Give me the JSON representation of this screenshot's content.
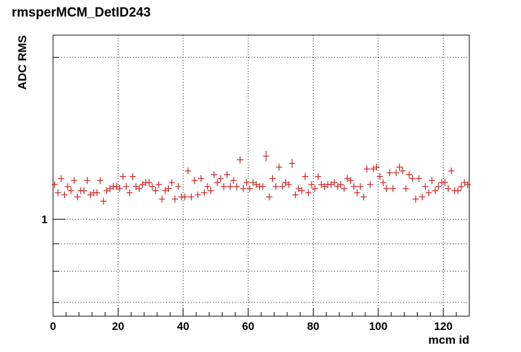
{
  "chart_data": {
    "type": "scatter",
    "title": "rmsperMCM_DetID243",
    "xlabel": "mcm id",
    "ylabel": "ADC RMS",
    "xlim": [
      0,
      128
    ],
    "ylim": [
      0.66,
      2.2
    ],
    "y_scale": "log",
    "grid": true,
    "x_ticks": [
      0,
      20,
      40,
      60,
      80,
      100,
      120
    ],
    "x_tick_labels": [
      "0",
      "20",
      "40",
      "60",
      "80",
      "100",
      "120"
    ],
    "y_tick_labels": [
      {
        "value": 1,
        "label": "1"
      }
    ],
    "marker_color": "#cc2222",
    "series": [
      {
        "x": [
          0,
          1,
          2,
          3,
          4,
          5,
          6,
          7,
          8,
          9,
          10,
          11,
          12,
          13,
          14,
          15,
          16,
          17,
          18,
          19,
          20,
          21,
          22,
          23,
          24,
          25,
          26,
          27,
          28,
          29,
          30,
          31,
          32,
          33,
          34,
          35,
          36,
          37,
          38,
          39,
          40,
          41,
          42,
          43,
          44,
          45,
          46,
          47,
          48,
          49,
          50,
          51,
          52,
          53,
          54,
          55,
          56,
          57,
          58,
          59,
          60,
          61,
          62,
          63,
          64,
          65,
          66,
          67,
          68,
          69,
          70,
          71,
          72,
          73,
          74,
          75,
          76,
          77,
          78,
          79,
          80,
          81,
          82,
          83,
          84,
          85,
          86,
          87,
          88,
          89,
          90,
          91,
          92,
          93,
          94,
          95,
          96,
          97,
          98,
          99,
          100,
          101,
          102,
          103,
          104,
          105,
          106,
          107,
          108,
          109,
          110,
          111,
          112,
          113,
          114,
          115,
          116,
          117,
          118,
          119,
          120,
          121,
          122,
          123,
          124,
          125,
          126,
          127
        ],
        "y": [
          1.16,
          1.12,
          1.19,
          1.11,
          1.15,
          1.13,
          1.18,
          1.1,
          1.13,
          1.13,
          1.18,
          1.11,
          1.12,
          1.12,
          1.18,
          1.08,
          1.13,
          1.14,
          1.15,
          1.15,
          1.14,
          1.2,
          1.15,
          1.12,
          1.2,
          1.15,
          1.14,
          1.16,
          1.17,
          1.17,
          1.15,
          1.13,
          1.16,
          1.09,
          1.13,
          1.14,
          1.17,
          1.09,
          1.15,
          1.1,
          1.1,
          1.23,
          1.1,
          1.18,
          1.11,
          1.19,
          1.12,
          1.15,
          1.13,
          1.21,
          1.17,
          1.19,
          1.15,
          1.21,
          1.15,
          1.18,
          1.15,
          1.29,
          1.14,
          1.17,
          1.14,
          1.17,
          1.16,
          1.15,
          1.15,
          1.31,
          1.1,
          1.19,
          1.15,
          1.25,
          1.15,
          1.17,
          1.16,
          1.27,
          1.11,
          1.14,
          1.13,
          1.2,
          1.12,
          1.16,
          1.14,
          1.2,
          1.16,
          1.15,
          1.16,
          1.16,
          1.17,
          1.15,
          1.16,
          1.14,
          1.19,
          1.18,
          1.15,
          1.12,
          1.15,
          1.1,
          1.24,
          1.16,
          1.24,
          1.25,
          1.2,
          1.17,
          1.14,
          1.22,
          1.14,
          1.22,
          1.25,
          1.23,
          1.14,
          1.21,
          1.19,
          1.09,
          1.19,
          1.1,
          1.15,
          1.12,
          1.18,
          1.13,
          1.15,
          1.17,
          1.17,
          1.14,
          1.23,
          1.13,
          1.13,
          1.15,
          1.17,
          1.16
        ],
        "y_err": [
          0.015,
          0.012,
          0.014,
          0.012,
          0.013,
          0.012,
          0.013,
          0.012,
          0.012,
          0.012,
          0.013,
          0.012,
          0.012,
          0.012,
          0.013,
          0.012,
          0.012,
          0.012,
          0.013,
          0.013,
          0.012,
          0.013,
          0.013,
          0.012,
          0.013,
          0.013,
          0.012,
          0.013,
          0.013,
          0.013,
          0.013,
          0.012,
          0.013,
          0.012,
          0.012,
          0.012,
          0.013,
          0.012,
          0.013,
          0.012,
          0.012,
          0.014,
          0.012,
          0.013,
          0.012,
          0.013,
          0.012,
          0.013,
          0.012,
          0.013,
          0.013,
          0.013,
          0.013,
          0.013,
          0.013,
          0.013,
          0.013,
          0.015,
          0.012,
          0.013,
          0.012,
          0.013,
          0.013,
          0.013,
          0.013,
          0.03,
          0.012,
          0.013,
          0.013,
          0.016,
          0.013,
          0.013,
          0.013,
          0.025,
          0.012,
          0.012,
          0.012,
          0.013,
          0.012,
          0.013,
          0.012,
          0.013,
          0.013,
          0.013,
          0.013,
          0.013,
          0.013,
          0.013,
          0.013,
          0.012,
          0.013,
          0.013,
          0.013,
          0.012,
          0.013,
          0.012,
          0.014,
          0.013,
          0.014,
          0.014,
          0.013,
          0.013,
          0.012,
          0.014,
          0.012,
          0.014,
          0.014,
          0.014,
          0.012,
          0.013,
          0.013,
          0.012,
          0.013,
          0.012,
          0.013,
          0.012,
          0.013,
          0.012,
          0.013,
          0.013,
          0.013,
          0.012,
          0.014,
          0.012,
          0.012,
          0.013,
          0.013,
          0.013
        ]
      }
    ]
  }
}
